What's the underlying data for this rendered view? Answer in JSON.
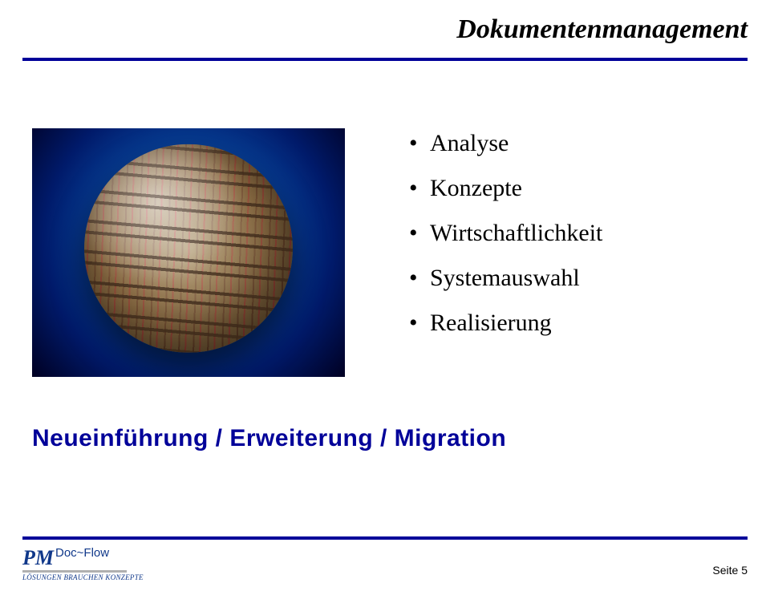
{
  "title": "Dokumentenmanagement",
  "bullets": [
    "Analyse",
    "Konzepte",
    "Wirtschaftlichkeit",
    "Systemauswahl",
    "Realisierung"
  ],
  "subheading": "Neueinführung  /  Erweiterung  /  Migration",
  "logo": {
    "pm": "PM",
    "docflow": "Doc~Flow",
    "tagline": "LÖSUNGEN BRAUCHEN KONZEPTE"
  },
  "page_label": "Seite 5",
  "colors": {
    "accent": "#000099",
    "text": "#000000",
    "logo": "#10388a",
    "background": "#ffffff"
  }
}
